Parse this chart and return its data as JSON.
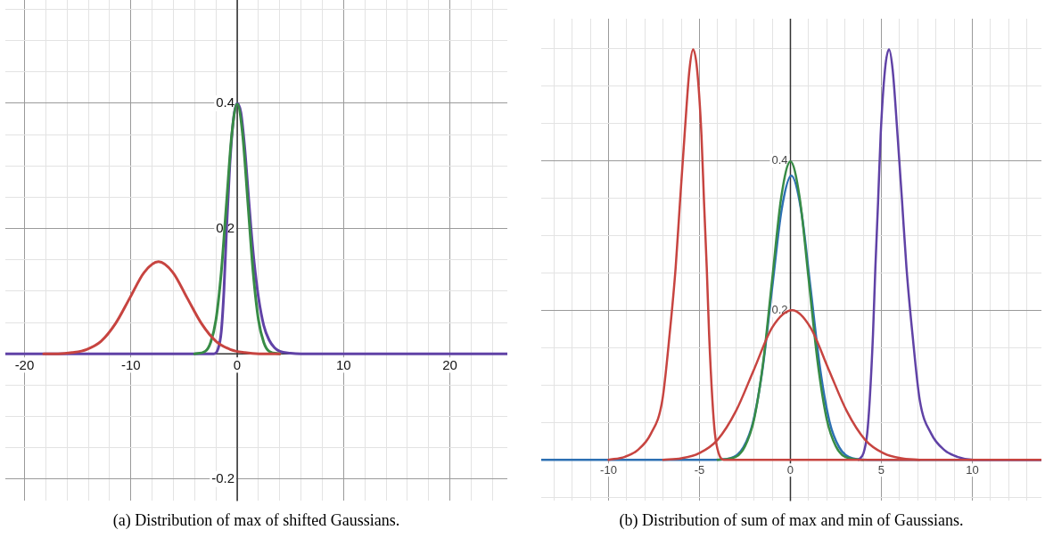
{
  "chart_data": [
    {
      "type": "line",
      "title": "(a) Distribution of max of shifted Gaussians.",
      "xlim": [
        -21.8,
        25.4
      ],
      "ylim": [
        -0.235,
        0.565
      ],
      "grid": true,
      "xticks": [
        -20,
        {
          "value": -18,
          "label": null
        },
        {
          "value": -16,
          "label": null
        },
        {
          "value": -14,
          "label": null
        },
        {
          "value": -12,
          "label": null
        },
        -10,
        {
          "value": -8,
          "label": null
        },
        {
          "value": -6,
          "label": null
        },
        {
          "value": -4,
          "label": null
        },
        {
          "value": -2,
          "label": null
        },
        0,
        {
          "value": 2,
          "label": null
        },
        {
          "value": 4,
          "label": null
        },
        {
          "value": 6,
          "label": null
        },
        {
          "value": 8,
          "label": null
        },
        10,
        {
          "value": 12,
          "label": null
        },
        {
          "value": 14,
          "label": null
        },
        {
          "value": 16,
          "label": null
        },
        {
          "value": 18,
          "label": null
        },
        20,
        {
          "value": 22,
          "label": null
        },
        {
          "value": 24,
          "label": null
        }
      ],
      "yticks": [
        -0.2,
        {
          "value": -0.15,
          "label": null
        },
        {
          "value": -0.1,
          "label": null
        },
        {
          "value": -0.05,
          "label": null
        },
        {
          "value": 0,
          "label": null
        },
        {
          "value": 0.05,
          "label": null
        },
        {
          "value": 0.1,
          "label": null
        },
        {
          "value": 0.15,
          "label": null
        },
        0.2,
        {
          "value": 0.25,
          "label": null
        },
        {
          "value": 0.3,
          "label": null
        },
        {
          "value": 0.35,
          "label": null
        },
        0.4,
        {
          "value": 0.45,
          "label": null
        },
        {
          "value": 0.5,
          "label": null
        },
        {
          "value": 0.55,
          "label": null
        }
      ],
      "series": [
        {
          "color": "#c74440",
          "x": [
            -18.2,
            -16.85,
            -15.5,
            -14.15,
            -12.8,
            -11.45,
            -10.1,
            -8.75,
            -7.4,
            -6.05,
            -4.7,
            -3.35,
            -2.0,
            -0.65,
            0.7,
            2.05,
            4
          ],
          "values": [
            0,
            0,
            0.002,
            0.007,
            0.02,
            0.048,
            0.089,
            0.13,
            0.147,
            0.13,
            0.089,
            0.048,
            0.02,
            0.007,
            0.002,
            0,
            0
          ]
        },
        {
          "color": "#388c46",
          "x": [
            -4,
            -3,
            -2.5,
            -2,
            -1.5,
            -1,
            -0.5,
            0,
            0.5,
            1,
            1.5,
            2,
            2.5,
            3,
            4
          ],
          "values": [
            0,
            0.004,
            0.018,
            0.054,
            0.13,
            0.242,
            0.352,
            0.399,
            0.352,
            0.242,
            0.13,
            0.054,
            0.018,
            0.004,
            0
          ]
        },
        {
          "color": "#6042a6",
          "x": [
            -21.8,
            -2.2,
            -1.8,
            -1.5,
            -1.25,
            -1.0,
            -0.7,
            -0.35,
            0,
            0.35,
            0.7,
            1.0,
            1.3,
            1.6,
            2.0,
            2.5,
            3,
            3.5,
            4,
            5,
            6,
            25.4
          ],
          "values": [
            0,
            0,
            0.008,
            0.035,
            0.1,
            0.2,
            0.3,
            0.375,
            0.4,
            0.385,
            0.33,
            0.265,
            0.2,
            0.145,
            0.09,
            0.045,
            0.022,
            0.01,
            0.004,
            0.001,
            0,
            0
          ]
        }
      ]
    },
    {
      "type": "line",
      "title": "(b) Distribution of sum of max and min of Gaussians.",
      "xlim": [
        -13.7,
        13.8
      ],
      "ylim": [
        -0.055,
        0.59
      ],
      "grid": true,
      "xticks": [
        {
          "value": -13,
          "label": null
        },
        {
          "value": -12,
          "label": null
        },
        {
          "value": -11,
          "label": null
        },
        -10,
        {
          "value": -9,
          "label": null
        },
        {
          "value": -8,
          "label": null
        },
        {
          "value": -7,
          "label": null
        },
        {
          "value": -6,
          "label": null
        },
        -5,
        {
          "value": -4,
          "label": null
        },
        {
          "value": -3,
          "label": null
        },
        {
          "value": -2,
          "label": null
        },
        {
          "value": -1,
          "label": null
        },
        0,
        {
          "value": 1,
          "label": null
        },
        {
          "value": 2,
          "label": null
        },
        {
          "value": 3,
          "label": null
        },
        {
          "value": 4,
          "label": null
        },
        5,
        {
          "value": 6,
          "label": null
        },
        {
          "value": 7,
          "label": null
        },
        {
          "value": 8,
          "label": null
        },
        {
          "value": 9,
          "label": null
        },
        10,
        {
          "value": 11,
          "label": null
        },
        {
          "value": 12,
          "label": null
        },
        {
          "value": 13,
          "label": null
        }
      ],
      "yticks": [
        {
          "value": -0.05,
          "label": null
        },
        {
          "value": 0,
          "label": null
        },
        {
          "value": 0.05,
          "label": null
        },
        {
          "value": 0.1,
          "label": null
        },
        {
          "value": 0.15,
          "label": null
        },
        0.2,
        {
          "value": 0.25,
          "label": null
        },
        {
          "value": 0.3,
          "label": null
        },
        {
          "value": 0.35,
          "label": null
        },
        0.4,
        {
          "value": 0.45,
          "label": null
        },
        {
          "value": 0.5,
          "label": null
        },
        {
          "value": 0.55,
          "label": null
        }
      ],
      "series": [
        {
          "color": "#c74440",
          "x": [
            -10,
            -9.1,
            -8.4,
            -7.67,
            -7.04,
            -6.64,
            -6.31,
            -6.07,
            -5.82,
            -5.55,
            -5.35,
            -5.13,
            -4.89,
            -4.75,
            -4.6,
            -4.47,
            -4.29,
            -4.15,
            -3.95,
            -3.67,
            13.8
          ],
          "values": [
            0,
            0.004,
            0.013,
            0.035,
            0.08,
            0.168,
            0.257,
            0.345,
            0.434,
            0.522,
            0.549,
            0.522,
            0.434,
            0.345,
            0.257,
            0.168,
            0.08,
            0.035,
            0.009,
            0,
            0
          ]
        },
        {
          "color": "#c74440",
          "x": [
            -7,
            -6,
            -5,
            -4,
            -3,
            -2,
            -1,
            0.1,
            1.1,
            2.1,
            3.1,
            4.1,
            5.1,
            6.1,
            7.1
          ],
          "values": [
            0,
            0.002,
            0.009,
            0.027,
            0.065,
            0.121,
            0.177,
            0.2,
            0.177,
            0.121,
            0.065,
            0.027,
            0.009,
            0.002,
            0
          ]
        },
        {
          "color": "#6042a6",
          "x": [
            3.74,
            4.02,
            4.22,
            4.36,
            4.54,
            4.67,
            4.82,
            4.96,
            5.2,
            5.42,
            5.62,
            5.89,
            6.14,
            6.38,
            6.71,
            7.11,
            7.74,
            8.47,
            9.17,
            10.07,
            13.8
          ],
          "values": [
            0,
            0.009,
            0.035,
            0.08,
            0.168,
            0.257,
            0.345,
            0.434,
            0.522,
            0.549,
            0.522,
            0.434,
            0.345,
            0.257,
            0.168,
            0.08,
            0.035,
            0.013,
            0.004,
            0,
            0
          ]
        },
        {
          "color": "#388c46",
          "x": [
            -4,
            -3,
            -2.5,
            -2,
            -1.5,
            -1,
            -0.5,
            0,
            0.5,
            1,
            1.5,
            2,
            2.5,
            3,
            4
          ],
          "values": [
            0,
            0.004,
            0.018,
            0.054,
            0.13,
            0.242,
            0.352,
            0.399,
            0.352,
            0.242,
            0.13,
            0.054,
            0.018,
            0.004,
            0
          ]
        },
        {
          "color": "#2d70b3",
          "x": [
            -13.7,
            -4.15,
            -3.1,
            -2.575,
            -2.05,
            -1.525,
            -1.0,
            -0.475,
            0.05,
            0.575,
            1.1,
            1.625,
            2.15,
            2.675,
            3.2,
            4.25,
            13.8
          ],
          "values": [
            0,
            0,
            0.004,
            0.017,
            0.051,
            0.123,
            0.231,
            0.336,
            0.38,
            0.336,
            0.231,
            0.123,
            0.051,
            0.017,
            0.004,
            0,
            0
          ]
        }
      ]
    }
  ]
}
